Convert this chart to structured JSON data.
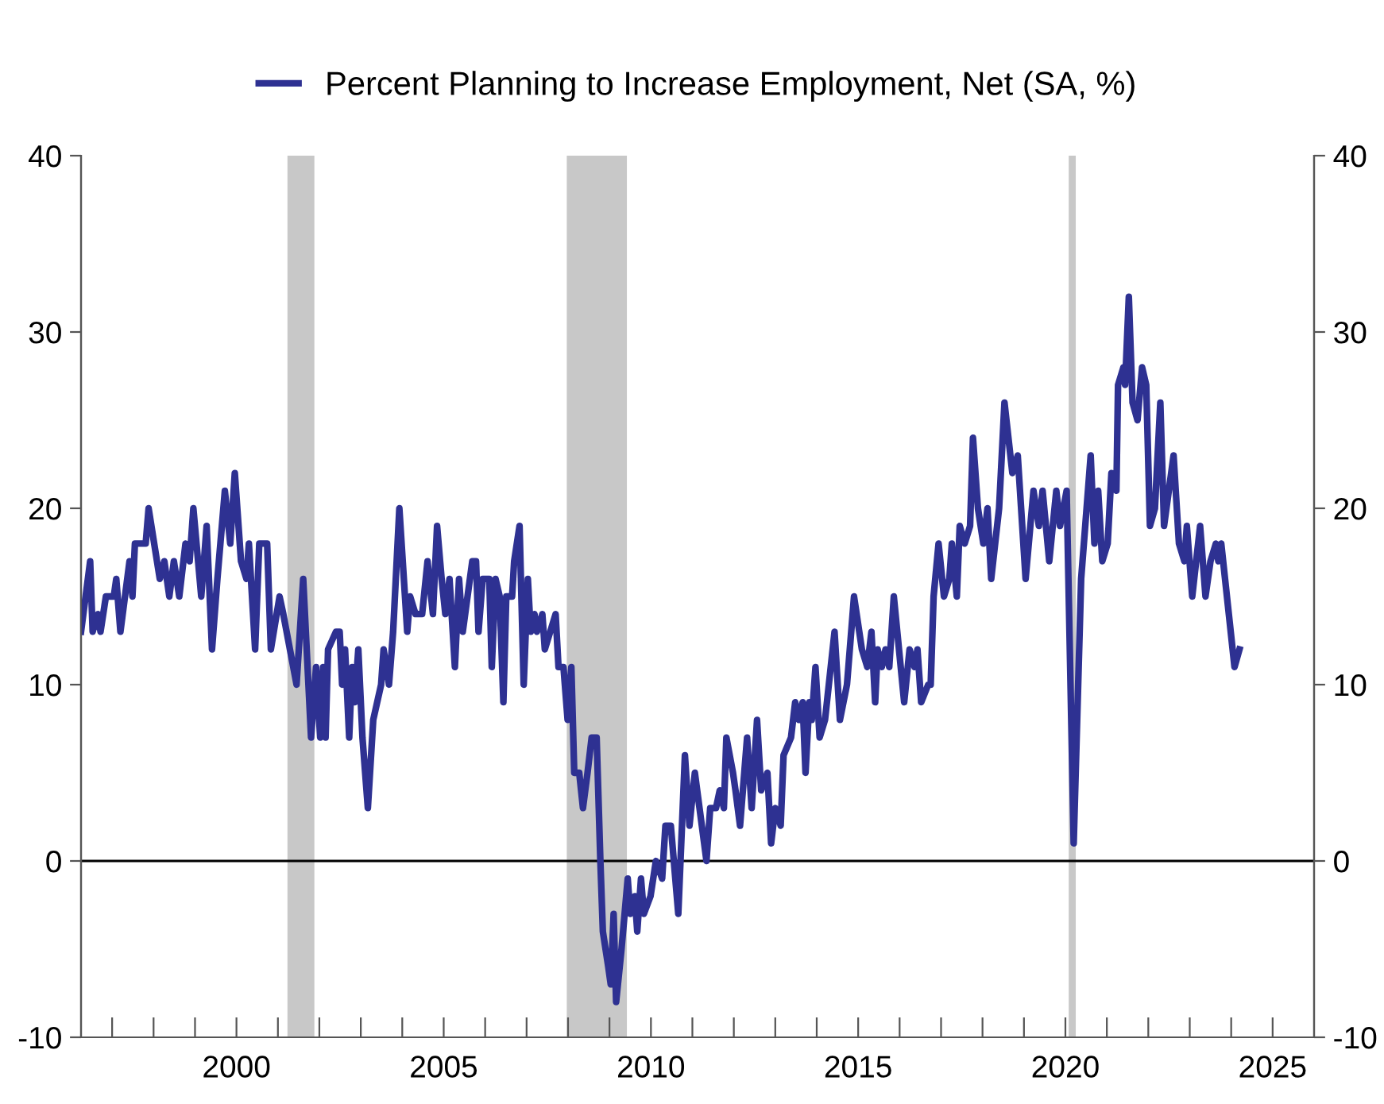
{
  "chart_data": {
    "type": "line",
    "xlim": [
      1996.25,
      2026.0
    ],
    "xticks": [
      {
        "value": 1997,
        "label": null
      },
      {
        "value": 1998,
        "label": null
      },
      {
        "value": 1999,
        "label": null
      },
      2000,
      {
        "value": 2001,
        "label": null
      },
      {
        "value": 2002,
        "label": null
      },
      {
        "value": 2003,
        "label": null
      },
      {
        "value": 2004,
        "label": null
      },
      2005,
      {
        "value": 2006,
        "label": null
      },
      {
        "value": 2007,
        "label": null
      },
      {
        "value": 2008,
        "label": null
      },
      {
        "value": 2009,
        "label": null
      },
      2010,
      {
        "value": 2011,
        "label": null
      },
      {
        "value": 2012,
        "label": null
      },
      {
        "value": 2013,
        "label": null
      },
      {
        "value": 2014,
        "label": null
      },
      2015,
      {
        "value": 2016,
        "label": null
      },
      {
        "value": 2017,
        "label": null
      },
      {
        "value": 2018,
        "label": null
      },
      {
        "value": 2019,
        "label": null
      },
      2020,
      {
        "value": 2021,
        "label": null
      },
      {
        "value": 2022,
        "label": null
      },
      {
        "value": 2023,
        "label": null
      },
      {
        "value": 2024,
        "label": null
      },
      2025
    ],
    "ylim": [
      -10,
      40
    ],
    "yticks": [
      -10,
      0,
      10,
      20,
      30,
      40
    ],
    "y2lim": [
      -10,
      40
    ],
    "y2ticks": [
      -10,
      0,
      10,
      20,
      30,
      40
    ],
    "grid": false,
    "legend": "top",
    "marker": "none",
    "line_style": "solid",
    "ref_lines": [
      {
        "axis": "y",
        "value": 0,
        "color": "#000000",
        "line_style": "solid"
      }
    ],
    "bands": [
      {
        "axis": "x",
        "from": 2001.23,
        "to": 2001.88,
        "color": "#c8c8c8"
      },
      {
        "axis": "x",
        "from": 2007.97,
        "to": 2009.42,
        "color": "#c8c8c8"
      },
      {
        "axis": "x",
        "from": 2020.08,
        "to": 2020.25,
        "color": "#c8c8c8"
      }
    ],
    "series": [
      {
        "name": "Percent Planning to Increase Employment, Net (SA, %)",
        "color": "#2e3192",
        "x": [
          1996.25,
          1996.47,
          1996.53,
          1996.66,
          1996.72,
          1996.85,
          1997.04,
          1997.1,
          1997.2,
          1997.42,
          1997.49,
          1997.55,
          1997.81,
          1997.88,
          1998.15,
          1998.26,
          1998.38,
          1998.49,
          1998.62,
          1998.77,
          1998.87,
          1998.96,
          1999.15,
          1999.28,
          1999.41,
          1999.54,
          1999.72,
          1999.85,
          1999.96,
          2000.11,
          2000.24,
          2000.3,
          2000.45,
          2000.55,
          2000.74,
          2000.83,
          2001.04,
          2001.13,
          2001.45,
          2001.61,
          2001.8,
          2001.92,
          2002.02,
          2002.09,
          2002.15,
          2002.21,
          2002.4,
          2002.49,
          2002.55,
          2002.62,
          2002.72,
          2002.79,
          2002.85,
          2002.94,
          2003.04,
          2003.17,
          2003.3,
          2003.49,
          2003.55,
          2003.68,
          2003.78,
          2003.93,
          2004.12,
          2004.19,
          2004.32,
          2004.48,
          2004.61,
          2004.74,
          2004.84,
          2004.95,
          2005.04,
          2005.14,
          2005.27,
          2005.37,
          2005.46,
          2005.69,
          2005.78,
          2005.84,
          2005.94,
          2006.1,
          2006.16,
          2006.25,
          2006.35,
          2006.44,
          2006.51,
          2006.65,
          2006.7,
          2006.83,
          2006.93,
          2007.03,
          2007.1,
          2007.19,
          2007.25,
          2007.38,
          2007.44,
          2007.57,
          2007.7,
          2007.77,
          2007.89,
          2007.99,
          2008.08,
          2008.15,
          2008.27,
          2008.36,
          2008.47,
          2008.57,
          2008.69,
          2008.78,
          2008.84,
          2008.97,
          2009.03,
          2009.1,
          2009.16,
          2009.29,
          2009.44,
          2009.5,
          2009.61,
          2009.67,
          2009.76,
          2009.83,
          2009.99,
          2010.12,
          2010.27,
          2010.35,
          2010.48,
          2010.66,
          2010.82,
          2010.93,
          2011.06,
          2011.34,
          2011.43,
          2011.57,
          2011.66,
          2011.76,
          2011.82,
          2011.98,
          2012.04,
          2012.15,
          2012.32,
          2012.43,
          2012.56,
          2012.66,
          2012.81,
          2012.9,
          2013.0,
          2013.13,
          2013.2,
          2013.38,
          2013.48,
          2013.57,
          2013.66,
          2013.73,
          2013.82,
          2013.88,
          2013.97,
          2014.07,
          2014.2,
          2014.43,
          2014.56,
          2014.73,
          2014.9,
          2015.09,
          2015.22,
          2015.32,
          2015.41,
          2015.47,
          2015.57,
          2015.66,
          2015.75,
          2015.86,
          2016.11,
          2016.24,
          2016.36,
          2016.43,
          2016.52,
          2016.69,
          2016.75,
          2016.82,
          2016.94,
          2017.07,
          2017.2,
          2017.26,
          2017.38,
          2017.45,
          2017.57,
          2017.7,
          2017.77,
          2017.89,
          2018.02,
          2018.12,
          2018.21,
          2018.4,
          2018.53,
          2018.72,
          2018.85,
          2019.04,
          2019.23,
          2019.36,
          2019.45,
          2019.61,
          2019.78,
          2019.87,
          2020.03,
          2020.2,
          2020.38,
          2020.61,
          2020.7,
          2020.79,
          2020.89,
          2021.02,
          2021.11,
          2021.23,
          2021.27,
          2021.4,
          2021.44,
          2021.53,
          2021.62,
          2021.74,
          2021.85,
          2021.95,
          2022.04,
          2022.16,
          2022.29,
          2022.38,
          2022.61,
          2022.74,
          2022.87,
          2022.93,
          2023.06,
          2023.25,
          2023.38,
          2023.5,
          2023.63,
          2023.69,
          2023.76,
          2024.08,
          2024.2
        ],
        "values": [
          13,
          17,
          13,
          14,
          13,
          15,
          15,
          16,
          13,
          17,
          15,
          18,
          18,
          20,
          16,
          17,
          15,
          17,
          15,
          18,
          17,
          20,
          15,
          19,
          12,
          16,
          21,
          18,
          22,
          17,
          16,
          18,
          12,
          18,
          18,
          12,
          15,
          14,
          10,
          16,
          7,
          11,
          7,
          11,
          7,
          12,
          13,
          13,
          10,
          12,
          7,
          11,
          9,
          12,
          7,
          3,
          8,
          10,
          12,
          10,
          13,
          20,
          13,
          15,
          14,
          14,
          17,
          14,
          19,
          16,
          14,
          16,
          11,
          16,
          13,
          17,
          17,
          13,
          16,
          16,
          11,
          16,
          15,
          9,
          15,
          15,
          17,
          19,
          10,
          16,
          13,
          14,
          13,
          14,
          12,
          13,
          14,
          11,
          11,
          8,
          11,
          5,
          5,
          3,
          5,
          7,
          7,
          0,
          -4,
          -6,
          -7,
          -3,
          -8,
          -5,
          -1,
          -3,
          -2,
          -4,
          -1,
          -3,
          -2,
          0,
          -1,
          2,
          2,
          -3,
          6,
          2,
          5,
          0,
          3,
          3,
          4,
          3,
          7,
          5,
          4,
          2,
          7,
          3,
          8,
          4,
          5,
          1,
          3,
          2,
          6,
          7,
          9,
          8,
          9,
          5,
          9,
          8,
          11,
          7,
          8,
          13,
          8,
          10,
          15,
          12,
          11,
          13,
          9,
          12,
          11,
          12,
          11,
          15,
          9,
          12,
          11,
          12,
          9,
          10,
          10,
          15,
          18,
          15,
          16,
          18,
          15,
          19,
          18,
          19,
          24,
          20,
          18,
          20,
          16,
          20,
          26,
          22,
          23,
          16,
          21,
          19,
          21,
          17,
          21,
          19,
          21,
          1,
          16,
          23,
          18,
          21,
          17,
          18,
          22,
          21,
          27,
          28,
          27,
          32,
          26,
          25,
          28,
          27,
          19,
          20,
          26,
          19,
          23,
          18,
          17,
          19,
          15,
          19,
          15,
          17,
          18,
          17,
          18,
          11,
          12
        ]
      }
    ]
  }
}
